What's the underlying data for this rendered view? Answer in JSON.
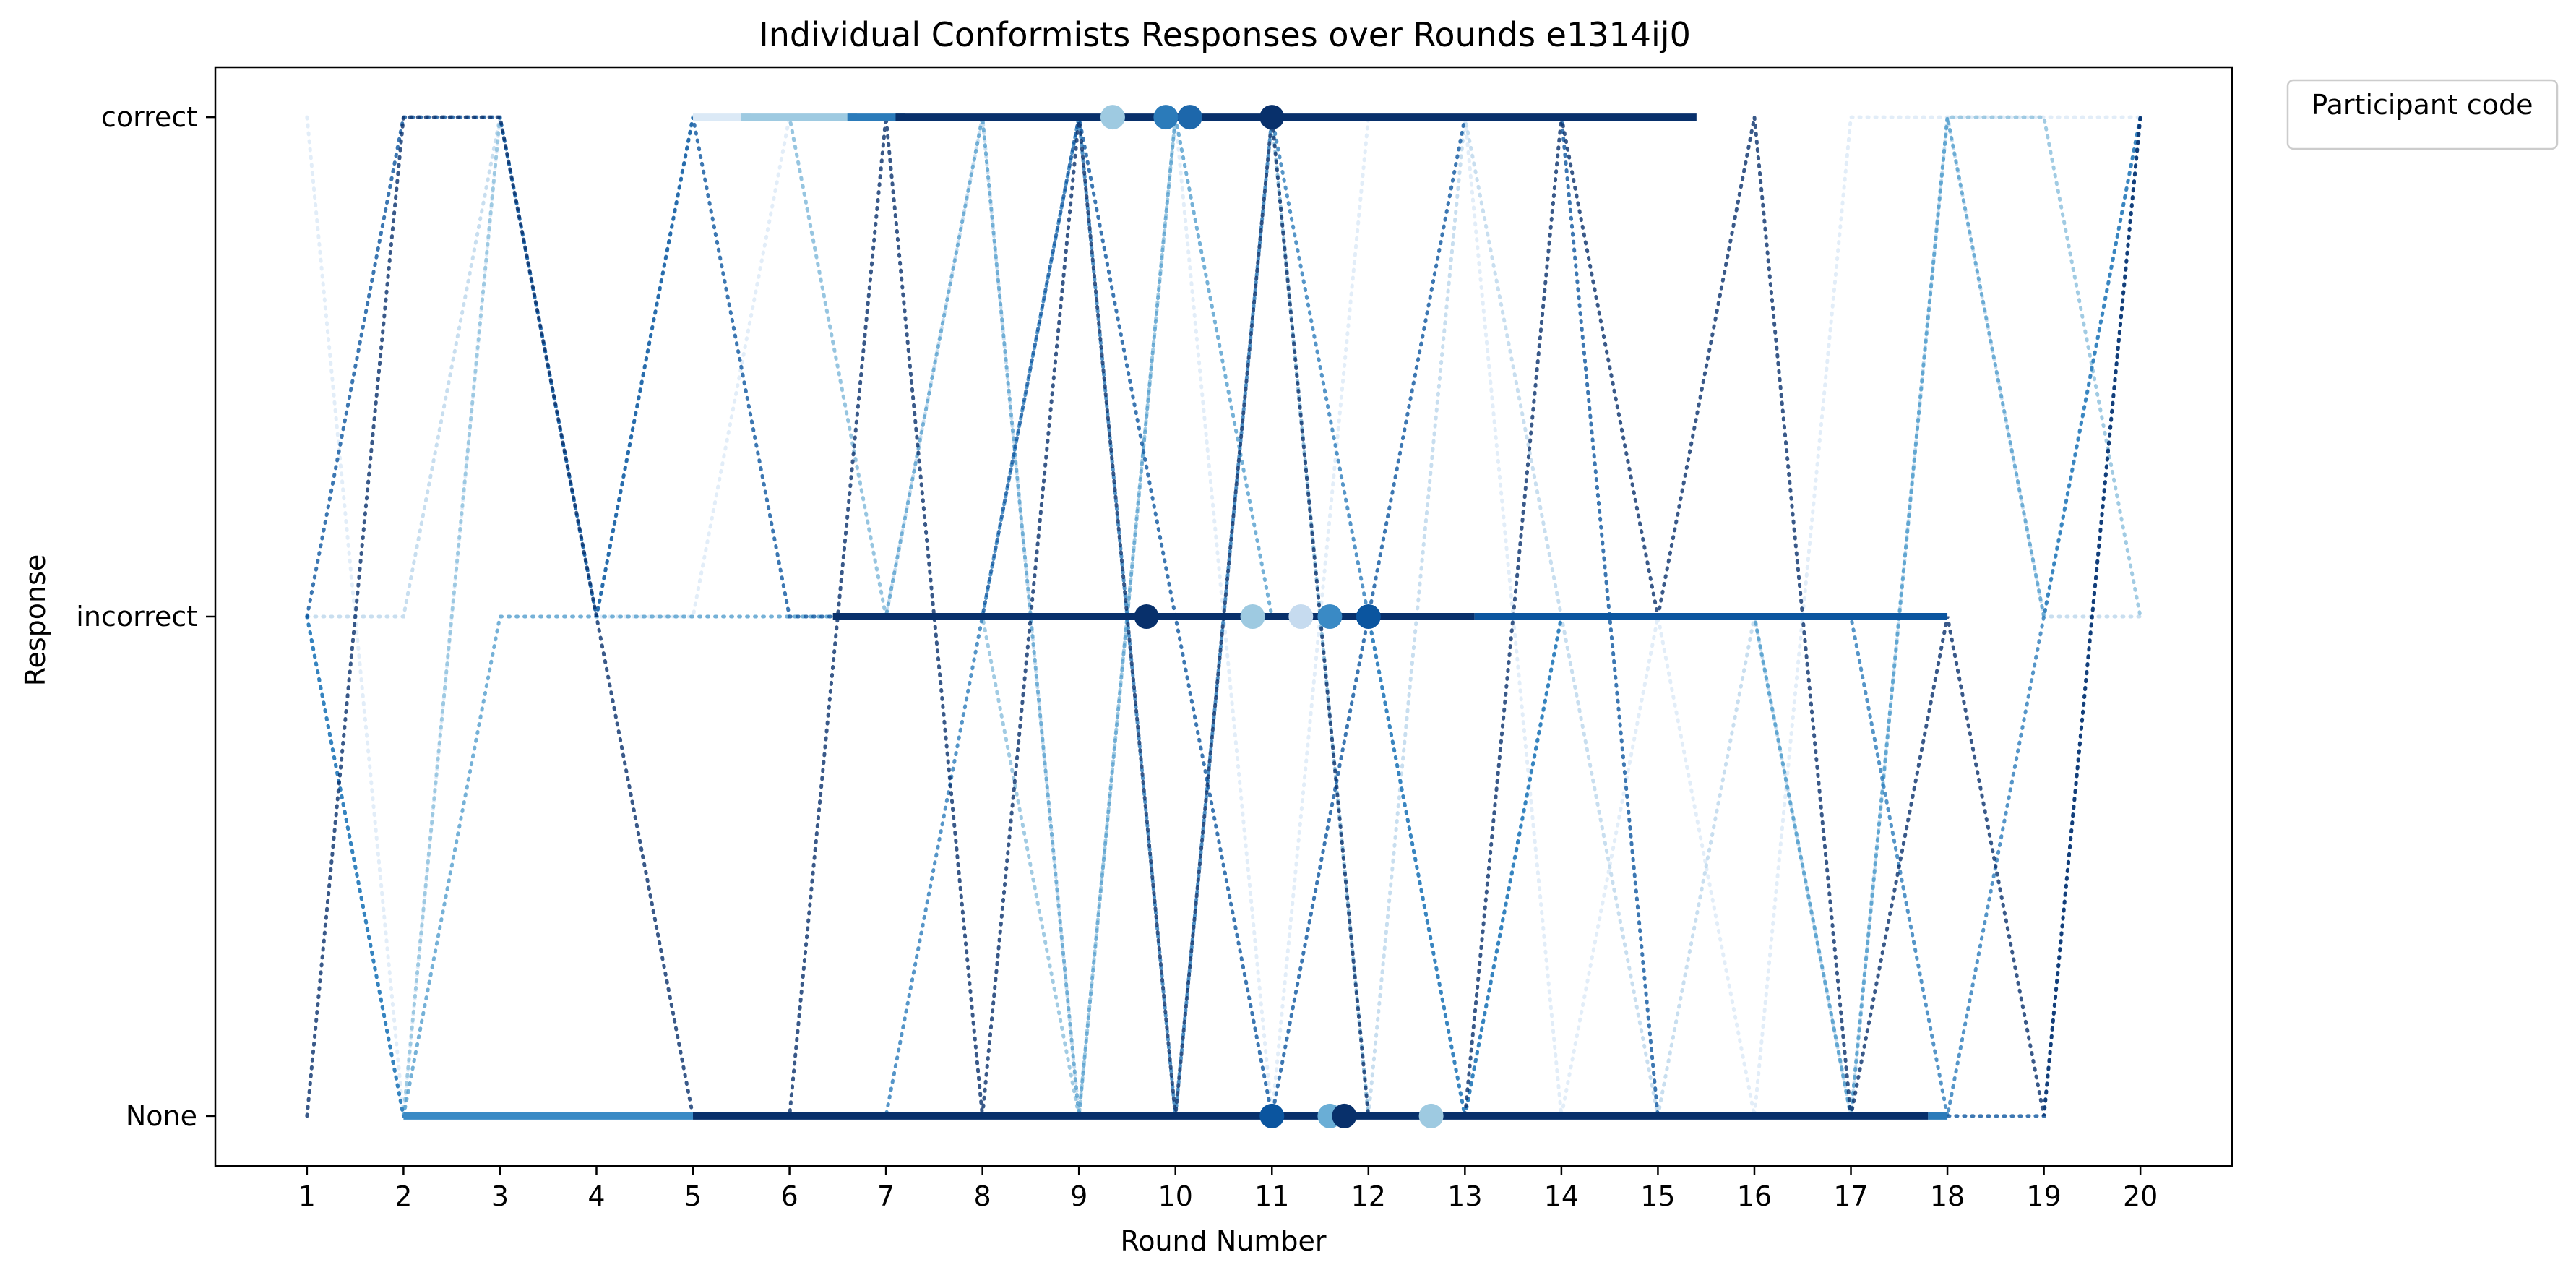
{
  "chart_data": {
    "type": "line",
    "title": "Individual Conformists Responses over Rounds e1314ij0",
    "xlabel": "Round Number",
    "ylabel": "Response",
    "x_ticks": [
      1,
      2,
      3,
      4,
      5,
      6,
      7,
      8,
      9,
      10,
      11,
      12,
      13,
      14,
      15,
      16,
      17,
      18,
      19,
      20
    ],
    "xlim": [
      0.05,
      20.95
    ],
    "y_categories": [
      "None",
      "incorrect",
      "correct"
    ],
    "ylim": [
      -0.1,
      2.1
    ],
    "grid": false,
    "legend": {
      "title": "Participant code",
      "placement": "upper-right-outside",
      "entries": []
    },
    "series": [
      {
        "color": "#dbe9f6",
        "values": [
          "correct",
          "None",
          "correct",
          "incorrect",
          "incorrect",
          "correct",
          "correct",
          "correct",
          "correct",
          "correct",
          "None",
          "correct",
          "correct",
          "None",
          "incorrect",
          "None",
          "correct",
          "correct",
          "correct",
          "correct"
        ]
      },
      {
        "color": "#bad6eb",
        "values": [
          "incorrect",
          "incorrect",
          "correct",
          "incorrect",
          "correct",
          "correct",
          "incorrect",
          "correct",
          "None",
          "None",
          "correct",
          "None",
          "correct",
          "incorrect",
          "None",
          "incorrect",
          "None",
          "correct",
          "incorrect",
          "incorrect"
        ]
      },
      {
        "color": "#89bedc",
        "values": [
          "incorrect",
          "None",
          "correct",
          "incorrect",
          "correct",
          "correct",
          "incorrect",
          "incorrect",
          "None",
          "correct",
          "correct",
          "None",
          "None",
          "incorrect",
          "incorrect",
          "incorrect",
          "None",
          "correct",
          "correct",
          "incorrect"
        ]
      },
      {
        "color": "#539ecd",
        "values": [
          "incorrect",
          "None",
          "incorrect",
          "incorrect",
          "incorrect",
          "incorrect",
          "incorrect",
          "correct",
          "None",
          "correct",
          "incorrect",
          "incorrect",
          "None",
          "incorrect",
          "incorrect",
          "incorrect",
          "None",
          "correct",
          "incorrect",
          "correct"
        ]
      },
      {
        "color": "#2b7bba",
        "values": [
          "incorrect",
          "None",
          "None",
          "None",
          "None",
          "None",
          "None",
          "incorrect",
          "correct",
          "None",
          "correct",
          "incorrect",
          "None",
          "incorrect",
          "incorrect",
          "incorrect",
          "incorrect",
          "None",
          "incorrect",
          "correct"
        ]
      },
      {
        "color": "#0b559f",
        "values": [
          "incorrect",
          "correct",
          "correct",
          "incorrect",
          "correct",
          "incorrect",
          "incorrect",
          "incorrect",
          "correct",
          "incorrect",
          "None",
          "incorrect",
          "correct",
          "correct",
          "None",
          "None",
          "None",
          "None",
          "None",
          "correct"
        ]
      },
      {
        "color": "#08306b",
        "values": [
          "None",
          "correct",
          "correct",
          "incorrect",
          "None",
          "None",
          "correct",
          "None",
          "correct",
          "None",
          "correct",
          "None",
          "None",
          "correct",
          "incorrect",
          "correct",
          "None",
          "incorrect",
          "None",
          "correct"
        ]
      }
    ],
    "segments": [
      {
        "color": "#dbe9f6",
        "y": "correct",
        "x_from": 5,
        "x_to": 5.6
      },
      {
        "color": "#9ecae1",
        "y": "correct",
        "x_from": 5.5,
        "x_to": 6.7
      },
      {
        "color": "#2b7bba",
        "y": "correct",
        "x_from": 6.6,
        "x_to": 7.2
      },
      {
        "color": "#08306b",
        "y": "correct",
        "x_from": 7.1,
        "x_to": 15.4
      },
      {
        "color": "#08306b",
        "y": "incorrect",
        "x_from": 6.45,
        "x_to": 13.1
      },
      {
        "color": "#0b559f",
        "y": "incorrect",
        "x_from": 13.1,
        "x_to": 18.0
      },
      {
        "color": "#3a8ac5",
        "y": "None",
        "x_from": 2.0,
        "x_to": 5.0
      },
      {
        "color": "#08306b",
        "y": "None",
        "x_from": 5.0,
        "x_to": 17.8
      },
      {
        "color": "#2b7bba",
        "y": "None",
        "x_from": 17.8,
        "x_to": 18.0
      }
    ],
    "points": [
      {
        "color": "#9ecae1",
        "x": 9.35,
        "y": "correct"
      },
      {
        "color": "#2b7bba",
        "x": 9.9,
        "y": "correct"
      },
      {
        "color": "#1d67ab",
        "x": 10.15,
        "y": "correct"
      },
      {
        "color": "#08306b",
        "x": 11.0,
        "y": "correct"
      },
      {
        "color": "#08306b",
        "x": 9.7,
        "y": "incorrect"
      },
      {
        "color": "#9ecae1",
        "x": 10.8,
        "y": "incorrect"
      },
      {
        "color": "#c6dbef",
        "x": 11.3,
        "y": "incorrect"
      },
      {
        "color": "#3a8ac5",
        "x": 11.6,
        "y": "incorrect"
      },
      {
        "color": "#0b559f",
        "x": 12.0,
        "y": "incorrect"
      },
      {
        "color": "#0b559f",
        "x": 11.0,
        "y": "None"
      },
      {
        "color": "#6aaed6",
        "x": 11.6,
        "y": "None"
      },
      {
        "color": "#08306b",
        "x": 11.75,
        "y": "None"
      },
      {
        "color": "#9ecae1",
        "x": 12.65,
        "y": "None"
      }
    ]
  }
}
